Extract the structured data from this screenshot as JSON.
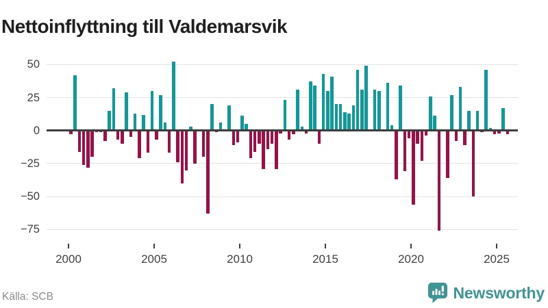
{
  "title": "Nettoinflyttning till Valdemarsvik",
  "source_label": "Källa: SCB",
  "brand": {
    "name": "Newsworthy",
    "icon": "newsworthy-speech-bubble-chart-icon"
  },
  "colors": {
    "positive_bar": "#0d9a9a",
    "negative_bar": "#9e0e47",
    "grid": "#e3e3e3",
    "zero_line": "#3c3c3c",
    "axis_text": "#3f3f3f",
    "title_text": "#1f1f1f",
    "source_text": "#8a8a8a",
    "brand_teal": "#3d9594"
  },
  "chart_data": {
    "type": "bar",
    "title": "Nettoinflyttning till Valdemarsvik",
    "xlabel": "",
    "ylabel": "",
    "frequency": "quarterly",
    "legend": "none",
    "grid": "horizontal",
    "x_tick_labels": [
      "2000",
      "2005",
      "2010",
      "2015",
      "2020",
      "2025"
    ],
    "y_ticks": [
      50,
      25,
      0,
      -25,
      -50,
      -75
    ],
    "y_tick_labels": [
      "50",
      "25",
      "0",
      "−25",
      "−50",
      "−75"
    ],
    "ylim": [
      -85,
      55
    ],
    "xlim_years": [
      2000,
      2026
    ],
    "series_by_year": [
      {
        "year": 2000,
        "q": [
          -3,
          42,
          -16,
          -26
        ]
      },
      {
        "year": 2001,
        "q": [
          -28,
          -20,
          -1,
          -1
        ]
      },
      {
        "year": 2002,
        "q": [
          -8,
          15,
          32,
          -7
        ]
      },
      {
        "year": 2003,
        "q": [
          -10,
          29,
          -5,
          13
        ]
      },
      {
        "year": 2004,
        "q": [
          -21,
          12,
          -17,
          30
        ]
      },
      {
        "year": 2005,
        "q": [
          -7,
          27,
          6,
          -17
        ]
      },
      {
        "year": 2006,
        "q": [
          52,
          -24,
          -40,
          -30
        ]
      },
      {
        "year": 2007,
        "q": [
          3,
          -25,
          0,
          -20
        ]
      },
      {
        "year": 2008,
        "q": [
          -63,
          20,
          -1,
          6
        ]
      },
      {
        "year": 2009,
        "q": [
          0,
          19,
          -11,
          -9
        ]
      },
      {
        "year": 2010,
        "q": [
          11,
          5,
          -21,
          -16
        ]
      },
      {
        "year": 2011,
        "q": [
          -10,
          -29,
          -14,
          -10
        ]
      },
      {
        "year": 2012,
        "q": [
          -29,
          -2,
          23,
          -7
        ]
      },
      {
        "year": 2013,
        "q": [
          -3,
          31,
          3,
          -2
        ]
      },
      {
        "year": 2014,
        "q": [
          37,
          34,
          -10,
          43
        ]
      },
      {
        "year": 2015,
        "q": [
          30,
          41,
          20,
          20
        ]
      },
      {
        "year": 2016,
        "q": [
          14,
          13,
          19,
          46
        ]
      },
      {
        "year": 2017,
        "q": [
          31,
          49,
          1,
          31
        ]
      },
      {
        "year": 2018,
        "q": [
          30,
          0,
          36,
          4
        ]
      },
      {
        "year": 2019,
        "q": [
          -37,
          34,
          -31,
          -6
        ]
      },
      {
        "year": 2020,
        "q": [
          -56,
          -10,
          -23,
          -4
        ]
      },
      {
        "year": 2021,
        "q": [
          26,
          11,
          -76,
          0
        ]
      },
      {
        "year": 2022,
        "q": [
          -36,
          27,
          -8,
          33
        ]
      },
      {
        "year": 2023,
        "q": [
          -11,
          15,
          -50,
          15
        ]
      },
      {
        "year": 2024,
        "q": [
          -1,
          46,
          2,
          -3
        ]
      },
      {
        "year": 2025,
        "q": [
          -2,
          17,
          -3
        ]
      }
    ]
  }
}
